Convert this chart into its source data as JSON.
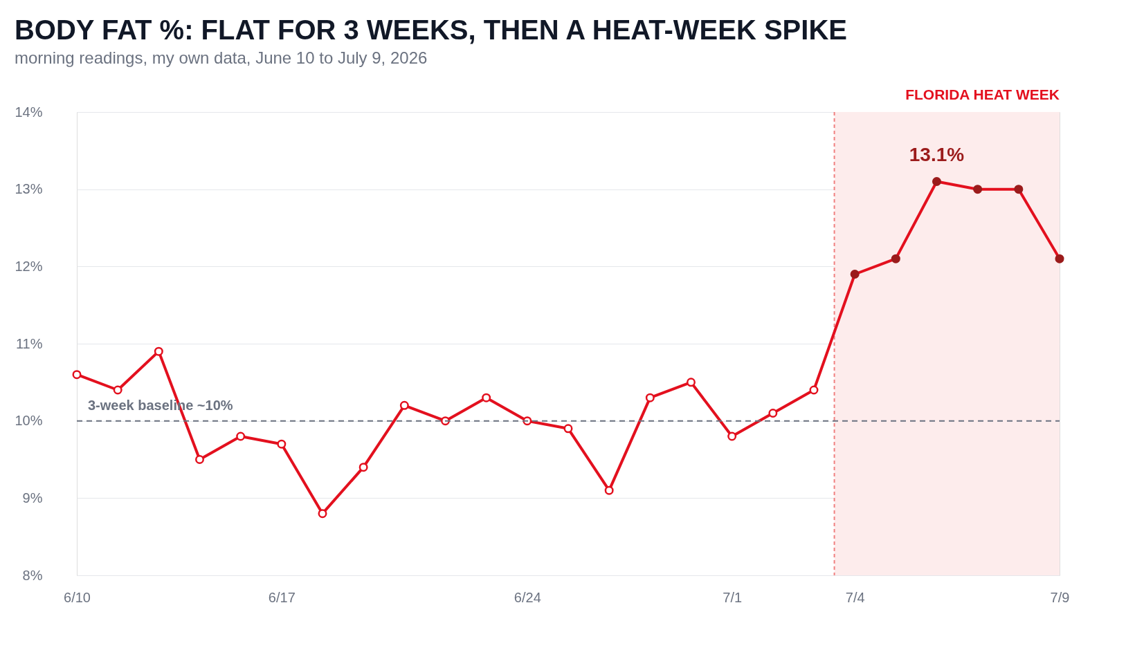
{
  "chart_data": {
    "type": "line",
    "title": "BODY FAT %: FLAT FOR 3 WEEKS, THEN A HEAT-WEEK SPIKE",
    "subtitle": "morning readings, my own data, June 10 to July 9, 2026",
    "categories": [
      "6/10",
      null,
      null,
      null,
      null,
      "6/17",
      null,
      null,
      null,
      null,
      null,
      "6/24",
      null,
      null,
      null,
      null,
      "7/1",
      null,
      null,
      "7/4",
      null,
      null,
      null,
      null,
      "7/9"
    ],
    "series": [
      {
        "color": "#e3101e",
        "marker": "circle",
        "values": [
          10.6,
          10.4,
          10.9,
          9.5,
          9.8,
          9.7,
          8.8,
          9.4,
          10.2,
          10.0,
          10.3,
          10.0,
          9.9,
          9.1,
          10.3,
          10.5,
          9.8,
          10.1,
          10.4,
          11.9,
          12.1,
          13.1,
          13.0,
          13.0,
          12.1
        ]
      },
      {
        "type": "scatter",
        "color": "#9b1b1b",
        "marker": "circle",
        "values": [
          null,
          null,
          null,
          null,
          null,
          null,
          null,
          null,
          null,
          null,
          null,
          null,
          null,
          null,
          null,
          null,
          null,
          null,
          null,
          11.9,
          12.1,
          13.1,
          13.0,
          13.0,
          12.1
        ]
      }
    ],
    "ylim": [
      8,
      14
    ],
    "yticks": [
      {
        "value": 8,
        "label": "8%"
      },
      {
        "value": 9,
        "label": "9%"
      },
      {
        "value": 10,
        "label": "10%"
      },
      {
        "value": 11,
        "label": "11%"
      },
      {
        "value": 12,
        "label": "12%"
      },
      {
        "value": 13,
        "label": "13%"
      },
      {
        "value": 14,
        "label": "14%"
      }
    ],
    "grid": "y",
    "line_style": "solid",
    "ref_lines": [
      {
        "axis": "y",
        "value": 10,
        "label": "3-week baseline ~10%",
        "color": "#6b7280",
        "line_style": "dashed"
      }
    ],
    "bands": [
      {
        "axis": "x",
        "from": "7/4",
        "to": "7/9",
        "label": "FLORIDA HEAT WEEK",
        "color": "#fdecec"
      }
    ],
    "annotations": [
      "13.1%"
    ]
  }
}
